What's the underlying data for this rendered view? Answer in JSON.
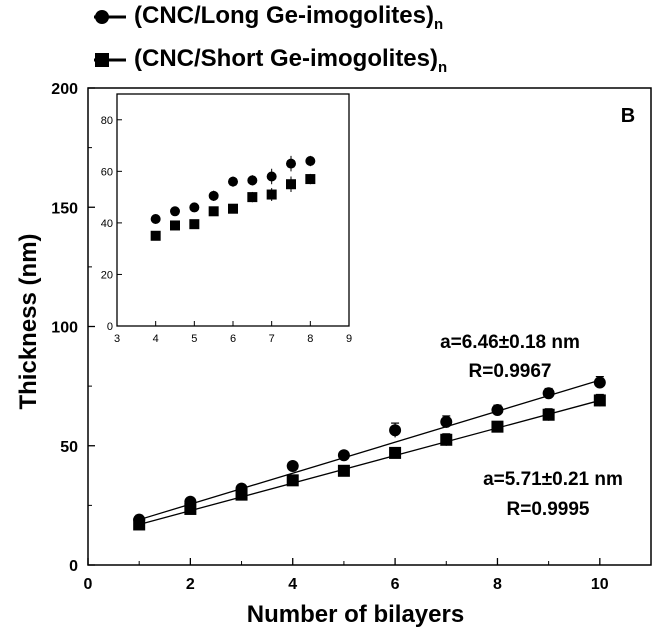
{
  "legend": [
    {
      "label": "(CNC/Long Ge-imogolites)",
      "subscript": "n",
      "marker": "circle"
    },
    {
      "label": "(CNC/Short Ge-imogolites)",
      "subscript": "n",
      "marker": "square"
    }
  ],
  "chart_data": [
    {
      "type": "scatter",
      "panel_label": "B",
      "xlabel": "Number of bilayers",
      "ylabel": "Thickness (nm)",
      "xlim": [
        0,
        11
      ],
      "ylim": [
        0,
        200
      ],
      "xticks": [
        0,
        2,
        4,
        6,
        8,
        10
      ],
      "yticks": [
        0,
        50,
        100,
        150,
        200
      ],
      "series": [
        {
          "name": "(CNC/Long Ge-imogolites)n",
          "marker": "circle",
          "x": [
            1,
            2,
            3,
            4,
            5,
            6,
            7,
            8,
            9,
            10
          ],
          "y": [
            19,
            26.5,
            32,
            41.5,
            46,
            56.5,
            60,
            65,
            72,
            76.5
          ],
          "error": [
            1,
            1,
            1.5,
            1.5,
            1.5,
            3,
            2.5,
            2,
            2,
            2.5
          ],
          "fit": {
            "x": [
              1,
              10
            ],
            "y": [
              19,
              77.5
            ]
          }
        },
        {
          "name": "(CNC/Short Ge-imogolites)n",
          "marker": "square",
          "x": [
            1,
            2,
            3,
            4,
            5,
            6,
            7,
            8,
            9,
            10
          ],
          "y": [
            17,
            23.5,
            29.5,
            35.5,
            39.5,
            47,
            52.5,
            58,
            63,
            69
          ],
          "error": [
            1,
            1,
            1,
            1,
            1.5,
            1.5,
            2.5,
            2,
            2.5,
            2.5
          ],
          "fit": {
            "x": [
              1,
              10
            ],
            "y": [
              17,
              69
            ]
          }
        }
      ],
      "annotations": [
        {
          "text": "a=6.46±0.18 nm",
          "series": "long"
        },
        {
          "text": "R=0.9967",
          "series": "long"
        },
        {
          "text": "a=5.71±0.21 nm",
          "series": "short"
        },
        {
          "text": "R=0.9995",
          "series": "short"
        }
      ]
    },
    {
      "type": "scatter",
      "role": "inset",
      "xlim": [
        3,
        9
      ],
      "ylim": [
        0,
        90
      ],
      "xticks": [
        3,
        4,
        5,
        6,
        7,
        8,
        9
      ],
      "yticks": [
        0,
        20,
        40,
        60,
        80
      ],
      "series": [
        {
          "marker": "circle",
          "x": [
            4,
            4.5,
            5,
            5.5,
            6,
            6.5,
            7,
            7.5,
            8
          ],
          "y": [
            41.5,
            44.5,
            46,
            50.5,
            56,
            56.5,
            58,
            63,
            64
          ],
          "error": [
            1.5,
            1.5,
            1.5,
            2,
            2,
            2,
            3,
            3,
            2
          ]
        },
        {
          "marker": "square",
          "x": [
            4,
            4.5,
            5,
            5.5,
            6,
            6.5,
            7,
            7.5,
            8
          ],
          "y": [
            35,
            39,
            39.5,
            44.5,
            45.5,
            50,
            51,
            55,
            57
          ],
          "error": [
            1,
            1.5,
            1.5,
            1.5,
            1.5,
            2,
            2.5,
            3,
            2
          ]
        }
      ]
    }
  ]
}
